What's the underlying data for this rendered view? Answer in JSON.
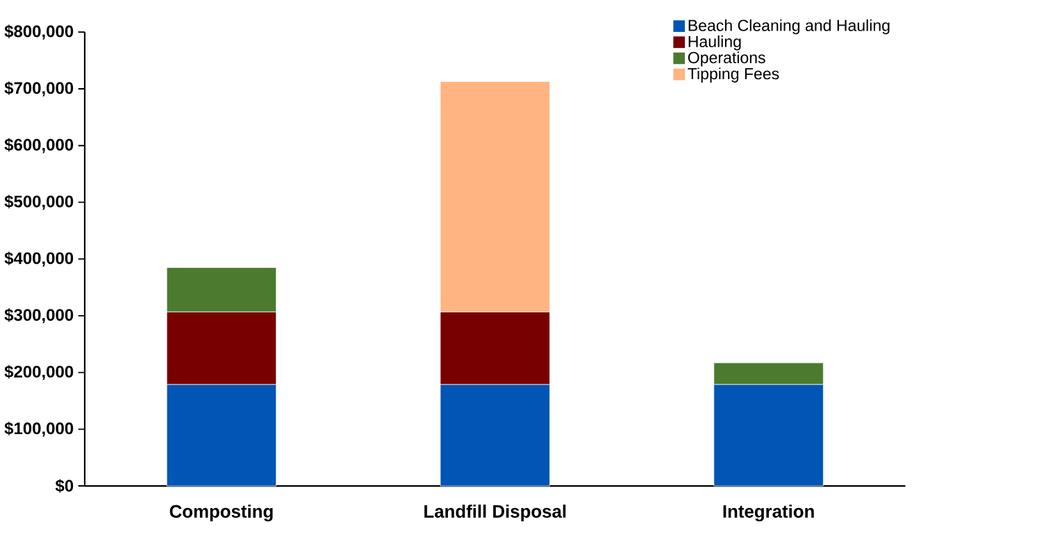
{
  "chart_data": {
    "type": "bar",
    "stacked": true,
    "categories": [
      "Composting",
      "Landfill Disposal",
      "Integration"
    ],
    "series": [
      {
        "name": "Beach Cleaning and Hauling",
        "color": "#0055b5",
        "values": [
          179000,
          179000,
          179000
        ]
      },
      {
        "name": "Hauling",
        "color": "#780000",
        "values": [
          128000,
          128000,
          null
        ]
      },
      {
        "name": "Operations",
        "color": "#4c7a2f",
        "values": [
          78000,
          null,
          38000
        ]
      },
      {
        "name": "Tipping Fees",
        "color": "#ffb482",
        "values": [
          null,
          406000,
          null
        ]
      }
    ],
    "ylim": [
      0,
      800000
    ],
    "yticks": [
      {
        "value": 0,
        "label": "$0"
      },
      {
        "value": 100000,
        "label": "$100,000"
      },
      {
        "value": 200000,
        "label": "$200,000"
      },
      {
        "value": 300000,
        "label": "$300,000"
      },
      {
        "value": 400000,
        "label": "$400,000"
      },
      {
        "value": 500000,
        "label": "$500,000"
      },
      {
        "value": 600000,
        "label": "$600,000"
      },
      {
        "value": 700000,
        "label": "$700,000"
      },
      {
        "value": 800000,
        "label": "$800,000"
      }
    ],
    "legend": "top right",
    "grid": false
  }
}
